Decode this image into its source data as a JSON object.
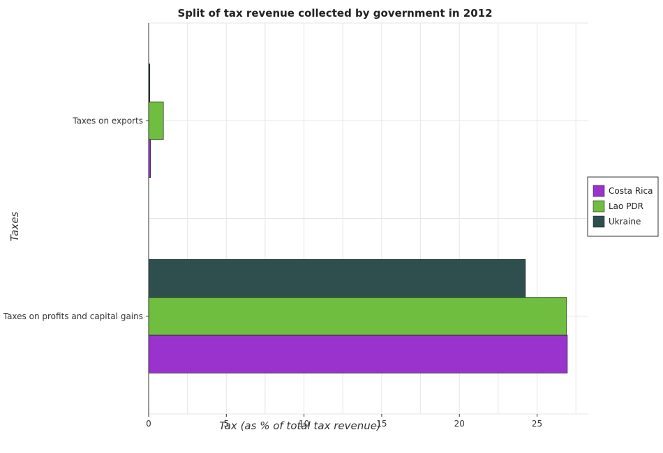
{
  "chart_data": {
    "type": "bar",
    "orientation": "horizontal",
    "title": "Split of tax revenue collected by government in 2012",
    "xlabel": "Tax (as % of total tax revenue)",
    "ylabel": "Taxes",
    "categories": [
      "Taxes on exports",
      "Taxes on profits and capital gains"
    ],
    "series": [
      {
        "name": "Costa Rica",
        "color": "#9a32cd",
        "values": [
          0.12,
          26.95
        ]
      },
      {
        "name": "Lao PDR",
        "color": "#6fbe3f",
        "values": [
          0.95,
          26.9
        ]
      },
      {
        "name": "Ukraine",
        "color": "#2f4f4f",
        "values": [
          0.08,
          24.25
        ]
      }
    ],
    "xlim": [
      0,
      28.3
    ],
    "xticks": [
      "0",
      "5",
      "10",
      "15",
      "20",
      "25"
    ],
    "grid": true,
    "legend_position": "right"
  }
}
